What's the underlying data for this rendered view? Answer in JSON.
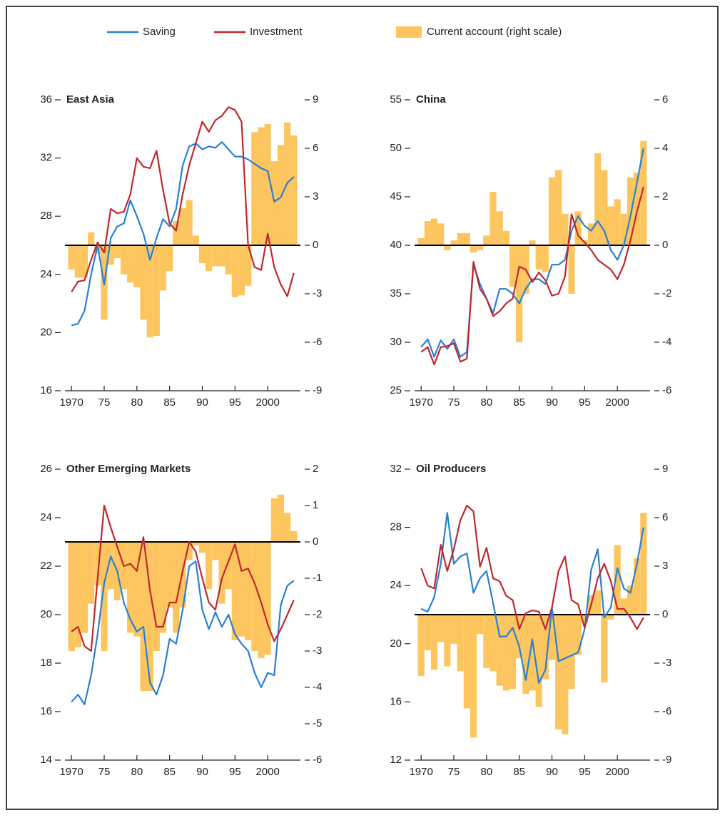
{
  "chart_data": {
    "type": "bar-line",
    "legend": [
      {
        "name": "Saving",
        "color": "#2a7fd4",
        "kind": "line"
      },
      {
        "name": "Investment",
        "color": "#c0282d",
        "kind": "line"
      },
      {
        "name": "Current account (right scale)",
        "color": "#fcc55e",
        "kind": "bar"
      }
    ],
    "x": [
      1970,
      1971,
      1972,
      1973,
      1974,
      1975,
      1976,
      1977,
      1978,
      1979,
      1980,
      1981,
      1982,
      1983,
      1984,
      1985,
      1986,
      1987,
      1988,
      1989,
      1990,
      1991,
      1992,
      1993,
      1994,
      1995,
      1996,
      1997,
      1998,
      1999,
      2000,
      2001,
      2002,
      2003,
      2004
    ],
    "xlim": [
      1969,
      2005
    ],
    "xticks": [
      1970,
      {
        "value": 1975,
        "label": "75"
      },
      {
        "value": 1980,
        "label": "80"
      },
      {
        "value": 1985,
        "label": "85"
      },
      {
        "value": 1990,
        "label": "90"
      },
      {
        "value": 1995,
        "label": "95"
      },
      2000
    ],
    "panels": [
      {
        "title": "East Asia",
        "ylim": [
          16,
          36
        ],
        "yticks": [
          16,
          20,
          24,
          28,
          32,
          36
        ],
        "y2lim": [
          -9,
          9
        ],
        "y2ticks": [
          -9,
          -6,
          -3,
          0,
          3,
          6,
          9
        ],
        "series": [
          {
            "values": [
              20.5,
              20.6,
              21.5,
              24,
              26,
              23.3,
              26.5,
              27.3,
              27.5,
              29.1,
              28,
              26.8,
              25,
              26.5,
              27.8,
              27.3,
              28.5,
              31.5,
              32.8,
              33,
              32.6,
              32.8,
              32.7,
              33.1,
              32.6,
              32.1,
              32.1,
              31.9,
              31.6,
              31.3,
              31.1,
              29,
              29.3,
              30.3,
              30.7
            ]
          },
          {
            "values": [
              22.8,
              23.5,
              23.6,
              25,
              26.2,
              25.5,
              28.5,
              28.2,
              28.3,
              29.5,
              32,
              31.4,
              31.3,
              32.5,
              29.8,
              27.5,
              27,
              29.5,
              31.5,
              33,
              34.5,
              33.8,
              34.6,
              34.9,
              35.5,
              35.3,
              34.5,
              26,
              24.5,
              24.3,
              26.8,
              24.5,
              23.3,
              22.5,
              24.1
            ]
          },
          {
            "axis": "y2",
            "values": [
              -1.5,
              -2,
              -2,
              0.8,
              -0.5,
              -4.6,
              -1.2,
              -0.8,
              -1.8,
              -2.3,
              -2.6,
              -4.6,
              -5.7,
              -5.6,
              -2.8,
              -1.6,
              1.5,
              2.3,
              2.8,
              0.6,
              -1.1,
              -1.6,
              -1.3,
              -1.3,
              -1.8,
              -3.2,
              -3.1,
              -2.5,
              7,
              7.3,
              7.5,
              5.2,
              6.2,
              7.6,
              6.8
            ]
          }
        ]
      },
      {
        "title": "China",
        "ylim": [
          25,
          55
        ],
        "yticks": [
          25,
          30,
          35,
          40,
          45,
          50,
          55
        ],
        "y2lim": [
          -6,
          6
        ],
        "y2ticks": [
          -6,
          -4,
          -2,
          0,
          2,
          4,
          6
        ],
        "series": [
          {
            "values": [
              29.5,
              30.3,
              28.5,
              30.2,
              29.3,
              30.3,
              28.5,
              29,
              38,
              36,
              34.5,
              33,
              35.5,
              35.5,
              35,
              34,
              35.5,
              36.5,
              36.5,
              36,
              38,
              38,
              38.5,
              41.5,
              43,
              42,
              41.5,
              42.5,
              41.5,
              39.5,
              38.5,
              40,
              43,
              46.5,
              50
            ]
          },
          {
            "values": [
              29,
              29.5,
              27.7,
              29.5,
              29.6,
              29.9,
              28,
              28.3,
              38.3,
              35.5,
              34.5,
              32.7,
              33.2,
              34,
              34.5,
              37.8,
              37.5,
              36.2,
              37.2,
              36.4,
              34.8,
              35,
              36.8,
              43.2,
              41,
              40.3,
              39.5,
              38.5,
              38,
              37.5,
              36.5,
              38,
              40.5,
              43.5,
              46
            ]
          },
          {
            "axis": "y2",
            "values": [
              0.3,
              1,
              1.1,
              0.9,
              -0.2,
              0.2,
              0.5,
              0.5,
              -0.3,
              -0.2,
              0.4,
              2.2,
              1.4,
              0.6,
              -1.7,
              -4,
              -2,
              0.2,
              -1,
              -1.1,
              2.8,
              3.1,
              1.3,
              -2,
              1.4,
              0.2,
              0.9,
              3.8,
              3.1,
              1.6,
              1.9,
              1.3,
              2.8,
              3,
              4.3
            ]
          }
        ]
      },
      {
        "title": "Other Emerging Markets",
        "ylim": [
          14,
          26
        ],
        "yticks": [
          14,
          16,
          18,
          20,
          22,
          24,
          26
        ],
        "y2lim": [
          -6,
          2
        ],
        "y2ticks": [
          -6,
          -5,
          -4,
          -3,
          -2,
          -1,
          0,
          1,
          2
        ],
        "series": [
          {
            "values": [
              16.4,
              16.7,
              16.3,
              17.5,
              19.2,
              21.3,
              22.4,
              21.8,
              20.5,
              19.8,
              19.3,
              19.5,
              17.2,
              16.7,
              17.5,
              19,
              18.8,
              20.2,
              22,
              22.2,
              20.2,
              19.4,
              20.1,
              19.5,
              20,
              19.2,
              18.8,
              18.5,
              17.6,
              17,
              17.6,
              17.5,
              20.4,
              21.2,
              21.4
            ]
          },
          {
            "values": [
              19.3,
              19.5,
              18.7,
              18.5,
              21.5,
              24.5,
              23.6,
              22.8,
              22,
              22.1,
              21.8,
              23.2,
              21,
              19.5,
              19.5,
              20.5,
              20.5,
              21.8,
              23,
              22.6,
              21.5,
              20.5,
              20.2,
              21.5,
              22.2,
              22.9,
              21.8,
              21.9,
              21.3,
              20.5,
              19.6,
              18.9,
              19.4,
              20,
              20.6
            ]
          },
          {
            "axis": "y2",
            "values": [
              -3,
              -2.9,
              -2.5,
              -1.7,
              -1.2,
              -3,
              -1.3,
              -1.6,
              -1.3,
              -2.5,
              -2.6,
              -4.1,
              -4.1,
              -3,
              -2.5,
              -1.8,
              -2.5,
              -1.8,
              -0.5,
              -0.1,
              -0.3,
              -1.3,
              -0.5,
              -1.7,
              -1.3,
              -2.7,
              -2.6,
              -2.7,
              -3,
              -3.2,
              -3.1,
              1.2,
              1.3,
              0.8,
              0.3
            ]
          }
        ]
      },
      {
        "title": "Oil Producers",
        "ylim": [
          12,
          32
        ],
        "yticks": [
          12,
          16,
          20,
          24,
          28,
          32
        ],
        "y2lim": [
          -9,
          9
        ],
        "y2ticks": [
          -9,
          -6,
          -3,
          0,
          3,
          6,
          9
        ],
        "series": [
          {
            "values": [
              22.4,
              22.2,
              23.2,
              25.5,
              29,
              25.5,
              26,
              26.2,
              23.5,
              24.5,
              25,
              22.8,
              20.5,
              20.5,
              21.1,
              19.8,
              17.5,
              20.3,
              17.3,
              18.2,
              22.5,
              18.8,
              19,
              19.2,
              19.4,
              21,
              25.1,
              26.5,
              21.8,
              22.5,
              25.2,
              23.8,
              23.5,
              25.5,
              28
            ]
          },
          {
            "values": [
              25.2,
              24,
              23.8,
              26.8,
              25,
              26.5,
              28.5,
              29.5,
              29.1,
              25.3,
              26.6,
              24.5,
              24.3,
              23.3,
              23,
              21,
              22.1,
              22.3,
              22.2,
              21,
              22.5,
              25,
              26,
              23,
              22.7,
              21.1,
              22.7,
              24.5,
              25.5,
              24.3,
              22.4,
              22.4,
              21.8,
              21,
              21.8
            ]
          },
          {
            "axis": "y2",
            "values": [
              -3.8,
              -2.2,
              -3.4,
              -1.7,
              -3.2,
              -1.8,
              -3.5,
              -5.8,
              -7.6,
              -1.2,
              -3.3,
              -3.5,
              -4.4,
              -4.7,
              -4.6,
              -2.7,
              -4.9,
              -4.7,
              -5.7,
              -4,
              -2.8,
              -7.1,
              -7.4,
              -4.6,
              -2.5,
              -0.5,
              1.2,
              1.5,
              -4.2,
              -0.3,
              4.3,
              1,
              1.8,
              3.5,
              6.3
            ]
          }
        ]
      }
    ]
  }
}
